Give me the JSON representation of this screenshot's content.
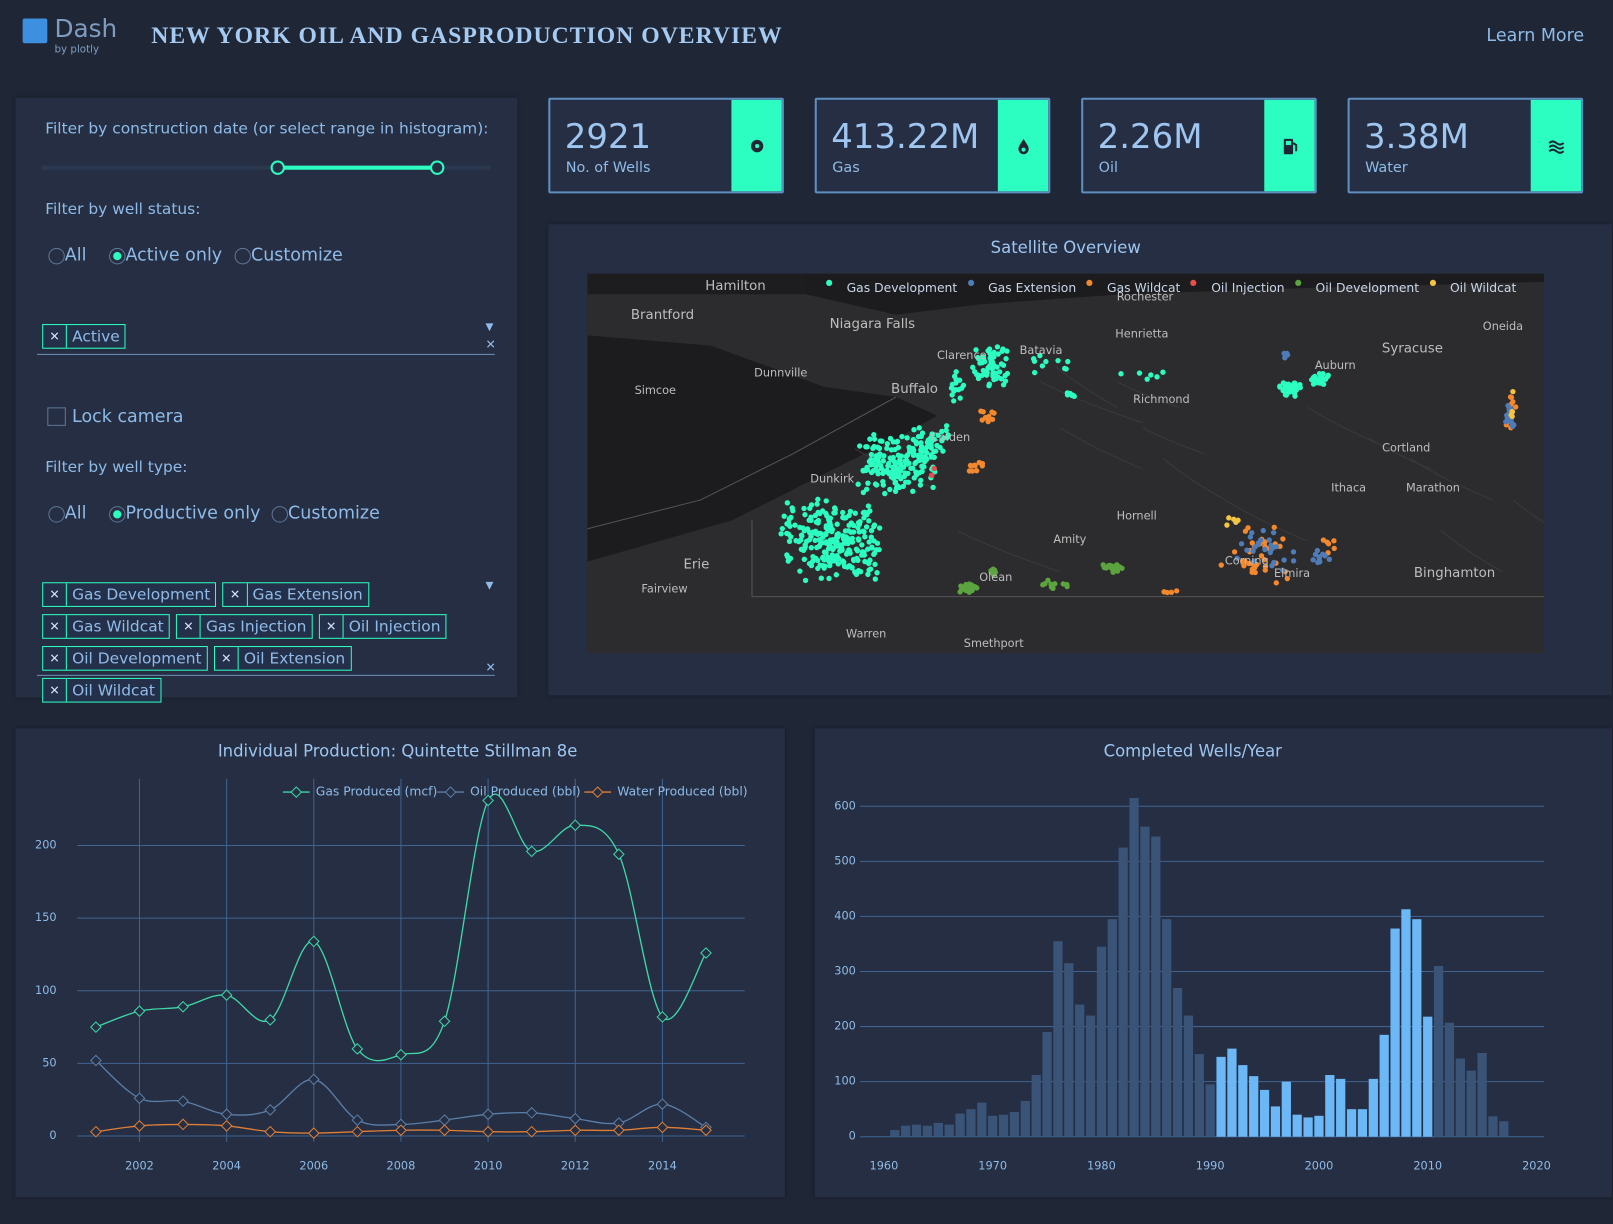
{
  "header": {
    "logo": "Dash",
    "logo_sub": "by plotly",
    "title": "NEW YORK OIL AND GASPRODUCTION OVERVIEW",
    "link": "Learn More"
  },
  "filters": {
    "date_label": "Filter by construction date (or select range in histogram):",
    "status_label": "Filter by well status:",
    "status_options": [
      "All",
      "Active only",
      "Customize"
    ],
    "status_selected": 1,
    "status_tags": [
      "Active"
    ],
    "lock_camera": "Lock camera",
    "type_label": "Filter by well type:",
    "type_options": [
      "All",
      "Productive only",
      "Customize"
    ],
    "type_selected": 1,
    "type_tags": [
      "Gas Development",
      "Gas Extension",
      "Gas Wildcat",
      "Gas Injection",
      "Oil Injection",
      "Oil Development",
      "Oil Extension",
      "Oil Wildcat"
    ]
  },
  "stats": [
    {
      "value": "2921",
      "label": "No. of Wells"
    },
    {
      "value": "413.22M",
      "label": "Gas"
    },
    {
      "value": "2.26M",
      "label": "Oil"
    },
    {
      "value": "3.38M",
      "label": "Water"
    }
  ],
  "map": {
    "title": "Satellite Overview",
    "legend": [
      {
        "name": "Gas Development",
        "color": "#2cfec1"
      },
      {
        "name": "Gas Extension",
        "color": "#4e7cb8"
      },
      {
        "name": "Gas Wildcat",
        "color": "#f4882c"
      },
      {
        "name": "Oil Injection",
        "color": "#e84e4e"
      },
      {
        "name": "Oil Development",
        "color": "#5ba43e"
      },
      {
        "name": "Oil Wildcat",
        "color": "#f5c542"
      }
    ],
    "places": [
      "Hamilton",
      "Brantford",
      "Niagara Falls",
      "Rochester",
      "Henrietta",
      "Batavia",
      "Clarence",
      "Buffalo",
      "Dunnville",
      "Simcoe",
      "Richmond",
      "Colden",
      "Syracuse",
      "Oneida",
      "Auburn",
      "Cortland",
      "Ithaca",
      "Marathon",
      "Dunkirk",
      "Hornell",
      "Amity",
      "Erie",
      "Fairview",
      "Corning",
      "Elmira",
      "Binghamton",
      "Olean",
      "Warren",
      "Smethport"
    ]
  },
  "charts": [
    {
      "type": "line",
      "title": "Individual Production: Quintette Stillman 8e",
      "x": [
        2001,
        2002,
        2003,
        2004,
        2005,
        2006,
        2007,
        2008,
        2009,
        2010,
        2011,
        2012,
        2013,
        2014,
        2015
      ],
      "series": [
        {
          "name": "Gas Produced (mcf)",
          "color": "#3fd6a8",
          "values": [
            75,
            86,
            89,
            97,
            80,
            134,
            60,
            56,
            79,
            231,
            196,
            214,
            194,
            82,
            126
          ]
        },
        {
          "name": "Oil Produced (bbl)",
          "color": "#5a7ea8",
          "values": [
            52,
            26,
            24,
            15,
            18,
            39,
            11,
            8,
            11,
            15,
            16,
            12,
            9,
            22,
            6
          ]
        },
        {
          "name": "Water Produced (bbl)",
          "color": "#de7f38",
          "values": [
            3,
            7,
            8,
            7,
            3,
            2,
            3,
            4,
            4,
            3,
            3,
            4,
            4,
            6,
            4
          ]
        }
      ],
      "xlim": [
        2000.57,
        2015.89
      ],
      "ylim": [
        -4,
        246
      ],
      "xticks": [
        2002,
        2004,
        2006,
        2008,
        2010,
        2012,
        2014
      ],
      "yticks": [
        0,
        50,
        100,
        150,
        200
      ],
      "grid": true,
      "smooth": true
    },
    {
      "type": "bar",
      "title": "Completed Wells/Year",
      "x": [
        1961,
        1962,
        1963,
        1964,
        1965,
        1966,
        1967,
        1968,
        1969,
        1970,
        1971,
        1972,
        1973,
        1974,
        1975,
        1976,
        1977,
        1978,
        1979,
        1980,
        1981,
        1982,
        1983,
        1984,
        1985,
        1986,
        1987,
        1988,
        1989,
        1990,
        1991,
        1992,
        1993,
        1994,
        1995,
        1996,
        1997,
        1998,
        1999,
        2000,
        2001,
        2002,
        2003,
        2004,
        2005,
        2006,
        2007,
        2008,
        2009,
        2010,
        2011,
        2012,
        2013,
        2014,
        2015,
        2016,
        2017
      ],
      "values": [
        12,
        20,
        22,
        20,
        25,
        22,
        42,
        50,
        62,
        38,
        40,
        45,
        65,
        112,
        190,
        355,
        315,
        240,
        220,
        345,
        395,
        525,
        615,
        563,
        545,
        395,
        270,
        220,
        150,
        95,
        145,
        160,
        130,
        110,
        85,
        55,
        100,
        40,
        35,
        38,
        112,
        105,
        50,
        50,
        105,
        185,
        378,
        413,
        395,
        218,
        310,
        207,
        142,
        120,
        152,
        37,
        28
      ],
      "color": "#3a5478",
      "highlight_color": "#6cb8f6",
      "highlight": [
        1991,
        2010
      ],
      "xlim": [
        1957.8,
        2020.7
      ],
      "ylim": [
        0,
        650
      ],
      "xticks": [
        1960,
        1970,
        1980,
        1990,
        2000,
        2010,
        2020
      ],
      "yticks": [
        0,
        100,
        200,
        300,
        400,
        500,
        600
      ],
      "grid": "y"
    }
  ]
}
